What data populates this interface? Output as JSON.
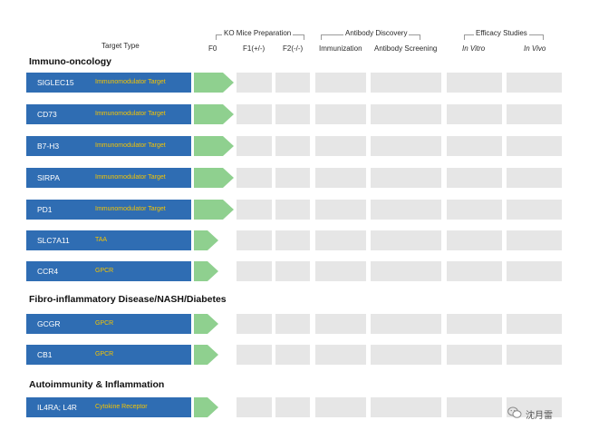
{
  "header": {
    "target_type": "Target Type",
    "groups": [
      {
        "label": "KO Mice Preparation"
      },
      {
        "label": "Antibody Discovery"
      },
      {
        "label": "Efficacy Studies"
      }
    ],
    "columns": [
      {
        "label": "F0"
      },
      {
        "label": "F1(+/-)"
      },
      {
        "label": "F2(-/-)"
      },
      {
        "label": "Immunization"
      },
      {
        "label": "Antibody Screening"
      },
      {
        "label": "In Vitro"
      },
      {
        "label": "In Vivo"
      }
    ]
  },
  "colors": {
    "target_fill": "#2f6db3",
    "type_text": "#f5c400",
    "progress": "#8fd08f",
    "empty_cell": "#e6e6e6"
  },
  "sections": [
    {
      "title": "Immuno-oncology",
      "rows": [
        {
          "target": "SIGLEC15",
          "type": "Immunomodulator Target",
          "progress_stage": "F0"
        },
        {
          "target": "CD73",
          "type": "Immunomodulator Target",
          "progress_stage": "F0"
        },
        {
          "target": "B7-H3",
          "type": "Immunomodulator Target",
          "progress_stage": "F0"
        },
        {
          "target": "SIRPA",
          "type": "Immunomodulator Target",
          "progress_stage": "F0"
        },
        {
          "target": "PD1",
          "type": "Immunomodulator Target",
          "progress_stage": "F0"
        },
        {
          "target": "SLC7A11",
          "type": "TAA",
          "progress_stage": "F0"
        },
        {
          "target": "CCR4",
          "type": "GPCR",
          "progress_stage": "F0"
        }
      ]
    },
    {
      "title": "Fibro-inflammatory Disease/NASH/Diabetes",
      "rows": [
        {
          "target": "GCGR",
          "type": "GPCR",
          "progress_stage": "F0"
        },
        {
          "target": "CB1",
          "type": "GPCR",
          "progress_stage": "F0"
        }
      ]
    },
    {
      "title": "Autoimmunity & Inflammation",
      "rows": [
        {
          "target": "IL4RA; L4R",
          "type": "Cytokine Receptor",
          "progress_stage": "F0"
        }
      ]
    }
  ],
  "footer": {
    "icon": "wechat-icon",
    "text": "沈月雷"
  }
}
